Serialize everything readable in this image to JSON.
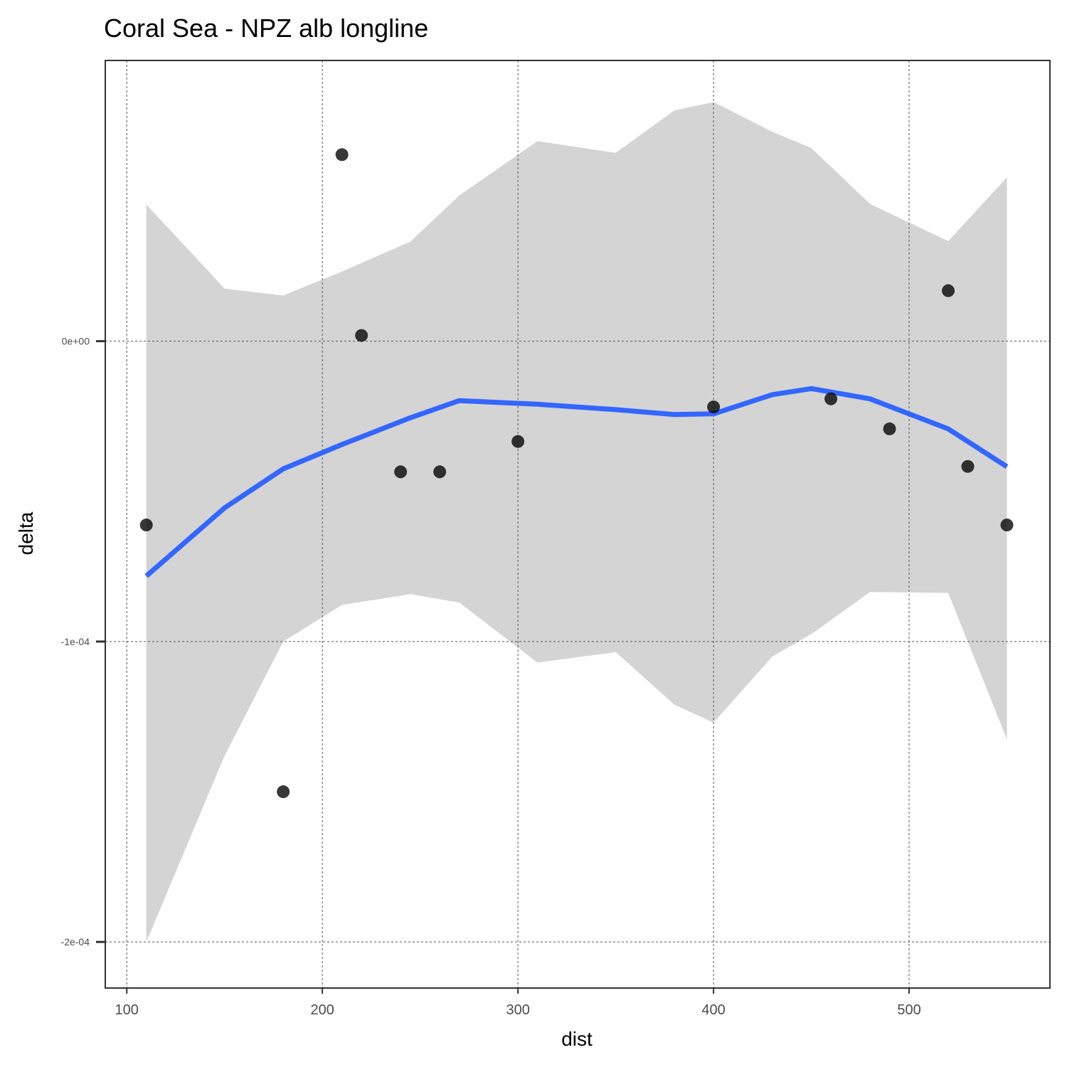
{
  "chart_data": {
    "type": "scatter",
    "title": "Coral Sea - NPZ alb longline",
    "xlabel": "dist",
    "ylabel": "delta",
    "xlim": [
      89,
      572
    ],
    "ylim": [
      -0.00021535,
      9.345e-05
    ],
    "x_ticks": [
      100,
      200,
      300,
      400,
      500
    ],
    "x_tick_labels": [
      "100",
      "200",
      "300",
      "400",
      "500"
    ],
    "y_ticks": [
      -0.0002,
      -0.0001,
      0
    ],
    "y_tick_labels": [
      "-2e-04",
      "-1e-04",
      "0e+00"
    ],
    "grid": true,
    "legend": "none",
    "colors": {
      "points": "#000000",
      "smooth_line": "#3366FF",
      "ribbon": "#D4D4D4",
      "grid": "#555555",
      "panel_border": "#333333"
    },
    "points": [
      {
        "x": 110,
        "y": -6.12e-05
      },
      {
        "x": 180,
        "y": -0.00015
      },
      {
        "x": 210,
        "y": 6.21e-05
      },
      {
        "x": 220,
        "y": 1.9e-06
      },
      {
        "x": 240,
        "y": -4.35e-05
      },
      {
        "x": 260,
        "y": -4.35e-05
      },
      {
        "x": 300,
        "y": -3.34e-05
      },
      {
        "x": 400,
        "y": -2.19e-05
      },
      {
        "x": 460,
        "y": -1.92e-05
      },
      {
        "x": 490,
        "y": -2.92e-05
      },
      {
        "x": 520,
        "y": 1.68e-05
      },
      {
        "x": 530,
        "y": -4.17e-05
      },
      {
        "x": 550,
        "y": -6.12e-05
      }
    ],
    "smooth": {
      "x": [
        110,
        150,
        180,
        210,
        245,
        270,
        310,
        350,
        380,
        400,
        430,
        450,
        480,
        520,
        550
      ],
      "y": [
        -7.82e-05,
        -5.55e-05,
        -4.25e-05,
        -3.44e-05,
        -2.55e-05,
        -1.98e-05,
        -2.1e-05,
        -2.28e-05,
        -2.44e-05,
        -2.42e-05,
        -1.78e-05,
        -1.58e-05,
        -1.92e-05,
        -2.92e-05,
        -4.18e-05
      ],
      "lower": [
        -0.0002,
        -0.000138,
        -0.0001,
        -8.78e-05,
        -8.42e-05,
        -8.7e-05,
        -0.000107,
        -0.0001035,
        -0.000121,
        -0.000127,
        -0.000105,
        -9.75e-05,
        -8.35e-05,
        -8.38e-05,
        -0.0001325
      ],
      "upper": [
        4.55e-05,
        1.75e-05,
        1.52e-05,
        2.32e-05,
        3.31e-05,
        4.85e-05,
        6.66e-05,
        6.27e-05,
        7.68e-05,
        7.96e-05,
        6.97e-05,
        6.43e-05,
        4.57e-05,
        3.33e-05,
        5.45e-05
      ]
    }
  }
}
